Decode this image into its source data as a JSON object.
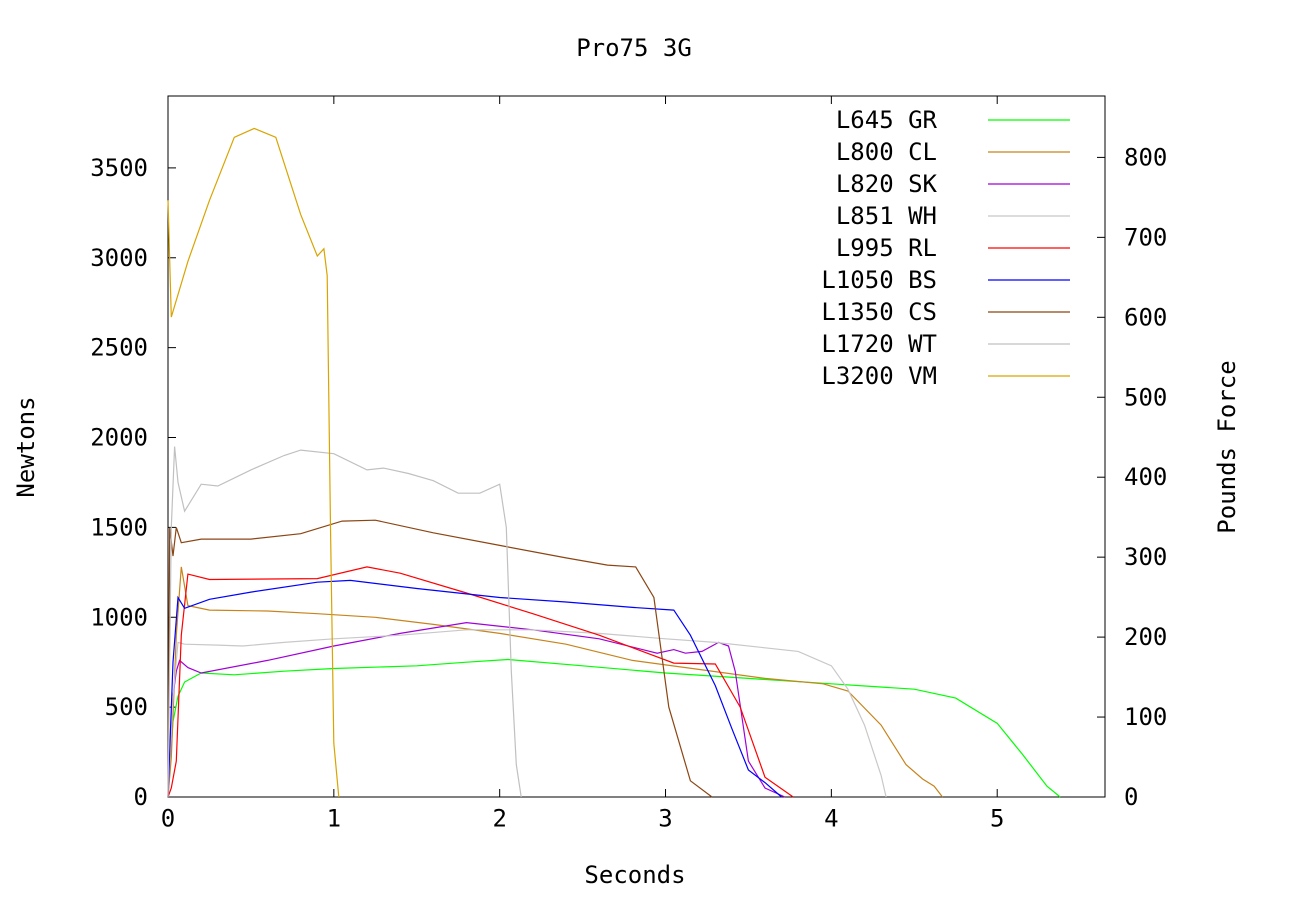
{
  "chart_data": {
    "type": "line",
    "title": "Pro75 3G",
    "xlabel": "Seconds",
    "ylabel": "Newtons",
    "y2label": "Pounds Force",
    "xlim": [
      0,
      5.65
    ],
    "ylim": [
      0,
      3900
    ],
    "y2lim": [
      0,
      876.8
    ],
    "xticks": [
      0,
      1,
      2,
      3,
      4,
      5
    ],
    "yticks": [
      0,
      500,
      1000,
      1500,
      2000,
      2500,
      3000,
      3500
    ],
    "y2ticks": [
      0,
      100,
      200,
      300,
      400,
      500,
      600,
      700,
      800
    ],
    "grid": false,
    "legend_position": "top-right",
    "series": [
      {
        "name": "L645 GR",
        "color": "#00ff00",
        "points": [
          [
            0,
            0
          ],
          [
            0.03,
            420
          ],
          [
            0.06,
            560
          ],
          [
            0.1,
            640
          ],
          [
            0.2,
            690
          ],
          [
            0.4,
            680
          ],
          [
            0.7,
            700
          ],
          [
            1.0,
            715
          ],
          [
            1.5,
            730
          ],
          [
            1.8,
            750
          ],
          [
            2.05,
            765
          ],
          [
            2.5,
            730
          ],
          [
            3.0,
            690
          ],
          [
            3.5,
            660
          ],
          [
            4.0,
            630
          ],
          [
            4.25,
            615
          ],
          [
            4.5,
            600
          ],
          [
            4.75,
            550
          ],
          [
            5.0,
            410
          ],
          [
            5.15,
            240
          ],
          [
            5.3,
            60
          ],
          [
            5.38,
            0
          ]
        ]
      },
      {
        "name": "L800 CL",
        "color": "#c8841c",
        "points": [
          [
            0,
            0
          ],
          [
            0.02,
            220
          ],
          [
            0.05,
            900
          ],
          [
            0.08,
            1280
          ],
          [
            0.12,
            1065
          ],
          [
            0.25,
            1040
          ],
          [
            0.6,
            1035
          ],
          [
            0.9,
            1020
          ],
          [
            1.25,
            1000
          ],
          [
            1.6,
            960
          ],
          [
            2.0,
            910
          ],
          [
            2.4,
            850
          ],
          [
            2.8,
            760
          ],
          [
            3.2,
            710
          ],
          [
            3.6,
            660
          ],
          [
            3.95,
            630
          ],
          [
            4.1,
            590
          ],
          [
            4.3,
            400
          ],
          [
            4.45,
            180
          ],
          [
            4.55,
            100
          ],
          [
            4.62,
            60
          ],
          [
            4.67,
            0
          ]
        ]
      },
      {
        "name": "L820 SK",
        "color": "#a000d8",
        "points": [
          [
            0,
            0
          ],
          [
            0.03,
            560
          ],
          [
            0.05,
            700
          ],
          [
            0.07,
            760
          ],
          [
            0.12,
            720
          ],
          [
            0.2,
            690
          ],
          [
            0.6,
            760
          ],
          [
            1.0,
            840
          ],
          [
            1.4,
            910
          ],
          [
            1.8,
            970
          ],
          [
            2.2,
            930
          ],
          [
            2.6,
            880
          ],
          [
            2.95,
            800
          ],
          [
            3.05,
            820
          ],
          [
            3.12,
            800
          ],
          [
            3.22,
            810
          ],
          [
            3.32,
            860
          ],
          [
            3.38,
            840
          ],
          [
            3.42,
            700
          ],
          [
            3.5,
            200
          ],
          [
            3.6,
            50
          ],
          [
            3.72,
            0
          ]
        ]
      },
      {
        "name": "L851 WH",
        "color": "#c8c8c8",
        "points": [
          [
            0,
            0
          ],
          [
            0.03,
            550
          ],
          [
            0.06,
            860
          ],
          [
            0.1,
            850
          ],
          [
            0.3,
            845
          ],
          [
            0.45,
            840
          ],
          [
            0.7,
            860
          ],
          [
            1.0,
            880
          ],
          [
            1.4,
            900
          ],
          [
            1.8,
            930
          ],
          [
            2.2,
            930
          ],
          [
            2.6,
            910
          ],
          [
            3.0,
            880
          ],
          [
            3.3,
            860
          ],
          [
            3.6,
            830
          ],
          [
            3.8,
            810
          ],
          [
            4.0,
            730
          ],
          [
            4.1,
            600
          ],
          [
            4.2,
            400
          ],
          [
            4.3,
            120
          ],
          [
            4.33,
            0
          ]
        ]
      },
      {
        "name": "L995 RL",
        "color": "#ff0000",
        "points": [
          [
            0,
            0
          ],
          [
            0.02,
            50
          ],
          [
            0.05,
            200
          ],
          [
            0.08,
            900
          ],
          [
            0.12,
            1240
          ],
          [
            0.25,
            1210
          ],
          [
            0.9,
            1215
          ],
          [
            1.2,
            1280
          ],
          [
            1.4,
            1245
          ],
          [
            1.8,
            1135
          ],
          [
            2.2,
            1020
          ],
          [
            2.6,
            900
          ],
          [
            3.05,
            745
          ],
          [
            3.3,
            740
          ],
          [
            3.45,
            500
          ],
          [
            3.6,
            110
          ],
          [
            3.77,
            0
          ]
        ]
      },
      {
        "name": "L1050 BS",
        "color": "#0000ff",
        "points": [
          [
            0,
            0
          ],
          [
            0.03,
            750
          ],
          [
            0.06,
            1110
          ],
          [
            0.1,
            1050
          ],
          [
            0.25,
            1100
          ],
          [
            0.5,
            1140
          ],
          [
            0.9,
            1195
          ],
          [
            1.1,
            1205
          ],
          [
            1.5,
            1160
          ],
          [
            2.0,
            1110
          ],
          [
            2.4,
            1085
          ],
          [
            2.8,
            1055
          ],
          [
            3.05,
            1040
          ],
          [
            3.15,
            900
          ],
          [
            3.3,
            620
          ],
          [
            3.4,
            380
          ],
          [
            3.5,
            150
          ],
          [
            3.6,
            80
          ],
          [
            3.7,
            0
          ]
        ]
      },
      {
        "name": "L1350 CS",
        "color": "#8b4513",
        "points": [
          [
            0,
            0
          ],
          [
            0.01,
            1500
          ],
          [
            0.03,
            1340
          ],
          [
            0.05,
            1500
          ],
          [
            0.08,
            1415
          ],
          [
            0.2,
            1435
          ],
          [
            0.5,
            1435
          ],
          [
            0.8,
            1465
          ],
          [
            1.05,
            1535
          ],
          [
            1.25,
            1540
          ],
          [
            1.6,
            1470
          ],
          [
            2.0,
            1400
          ],
          [
            2.4,
            1330
          ],
          [
            2.65,
            1290
          ],
          [
            2.82,
            1280
          ],
          [
            2.93,
            1110
          ],
          [
            3.02,
            500
          ],
          [
            3.15,
            90
          ],
          [
            3.28,
            0
          ]
        ]
      },
      {
        "name": "L1720 WT",
        "color": "#c0c0c0",
        "points": [
          [
            0,
            0
          ],
          [
            0.02,
            1500
          ],
          [
            0.04,
            1950
          ],
          [
            0.06,
            1750
          ],
          [
            0.1,
            1590
          ],
          [
            0.2,
            1740
          ],
          [
            0.3,
            1730
          ],
          [
            0.5,
            1820
          ],
          [
            0.7,
            1900
          ],
          [
            0.8,
            1930
          ],
          [
            1.0,
            1910
          ],
          [
            1.2,
            1820
          ],
          [
            1.3,
            1830
          ],
          [
            1.45,
            1800
          ],
          [
            1.6,
            1760
          ],
          [
            1.75,
            1690
          ],
          [
            1.88,
            1690
          ],
          [
            2.0,
            1740
          ],
          [
            2.04,
            1500
          ],
          [
            2.07,
            700
          ],
          [
            2.1,
            180
          ],
          [
            2.13,
            0
          ]
        ]
      },
      {
        "name": "L3200 VM",
        "color": "#d9a400",
        "points": [
          [
            0,
            3320
          ],
          [
            0.02,
            2670
          ],
          [
            0.12,
            2980
          ],
          [
            0.25,
            3320
          ],
          [
            0.4,
            3670
          ],
          [
            0.52,
            3720
          ],
          [
            0.65,
            3670
          ],
          [
            0.8,
            3240
          ],
          [
            0.9,
            3010
          ],
          [
            0.94,
            3050
          ],
          [
            0.96,
            2900
          ],
          [
            0.98,
            1500
          ],
          [
            1.0,
            300
          ],
          [
            1.03,
            0
          ]
        ]
      }
    ]
  }
}
